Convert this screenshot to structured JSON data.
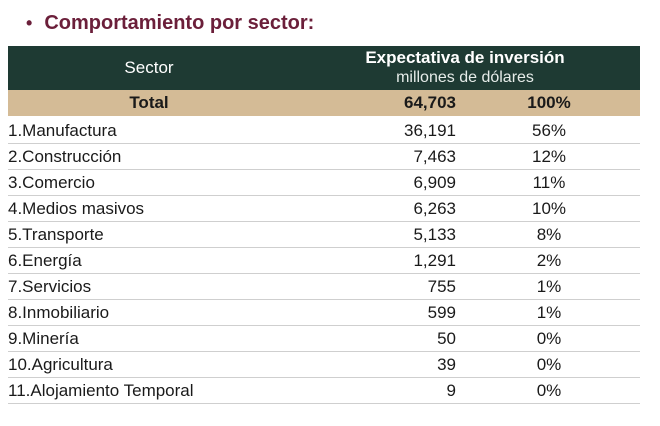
{
  "heading": {
    "bullet": "•",
    "title": "Comportamiento por sector:"
  },
  "table": {
    "header_sector": "Sector",
    "header_investment": "Expectativa de inversión",
    "header_units": "millones de dólares",
    "total": {
      "label": "Total",
      "amount": "64,703",
      "share": "100%"
    },
    "rows": [
      {
        "label": "1.Manufactura",
        "amount": "36,191",
        "share": "56%"
      },
      {
        "label": "2.Construcción",
        "amount": "7,463",
        "share": "12%"
      },
      {
        "label": "3.Comercio",
        "amount": "6,909",
        "share": "11%"
      },
      {
        "label": "4.Medios masivos",
        "amount": "6,263",
        "share": "10%"
      },
      {
        "label": "5.Transporte",
        "amount": "5,133",
        "share": "8%"
      },
      {
        "label": "6.Energía",
        "amount": "1,291",
        "share": "2%"
      },
      {
        "label": "7.Servicios",
        "amount": "755",
        "share": "1%"
      },
      {
        "label": "8.Inmobiliario",
        "amount": "599",
        "share": "1%"
      },
      {
        "label": "9.Minería",
        "amount": "50",
        "share": "0%"
      },
      {
        "label": "10.Agricultura",
        "amount": "39",
        "share": "0%"
      },
      {
        "label": "11.Alojamiento Temporal",
        "amount": "9",
        "share": "0%"
      }
    ]
  },
  "colors": {
    "title": "#6b1f3a",
    "header_bg": "#1e3a33",
    "total_bg": "#d4bb96"
  }
}
